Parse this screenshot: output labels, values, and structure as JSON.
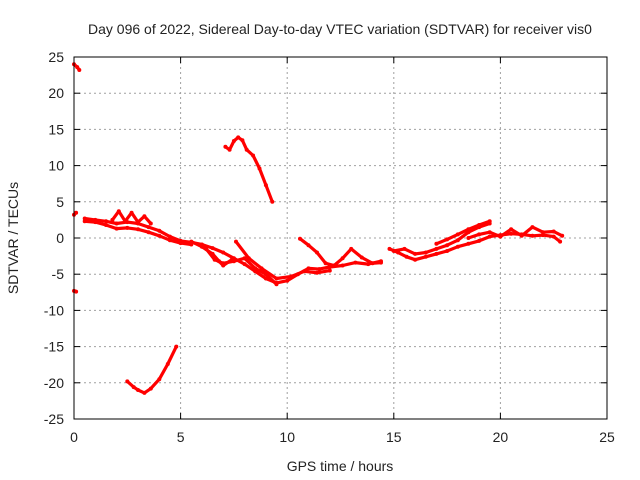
{
  "chart_data": {
    "type": "scatter",
    "title": "Day 096 of 2022, Sidereal Day-to-day VTEC variation (SDTVAR) for receiver vis0",
    "xlabel": "GPS time / hours",
    "ylabel": "SDTVAR / TECUs",
    "xlim": [
      0,
      25
    ],
    "ylim": [
      -25,
      25
    ],
    "xticks": [
      "0",
      "5",
      "10",
      "15",
      "20",
      "25"
    ],
    "yticks": [
      "25",
      "20",
      "15",
      "10",
      "5",
      "0",
      "-5",
      "-10",
      "-15",
      "-20",
      "-25"
    ],
    "xtick_values": [
      0,
      5,
      10,
      15,
      20,
      25
    ],
    "ytick_values": [
      25,
      20,
      15,
      10,
      5,
      0,
      -5,
      -10,
      -15,
      -20,
      -25
    ],
    "grid": true,
    "color": "#ff0000",
    "series": [
      {
        "name": "s1",
        "x": [
          0.0,
          0.15,
          0.25
        ],
        "y": [
          24.0,
          23.6,
          23.2
        ]
      },
      {
        "name": "s2",
        "x": [
          0.0,
          0.1
        ],
        "y": [
          3.2,
          3.5
        ]
      },
      {
        "name": "s3",
        "x": [
          0.0,
          0.1
        ],
        "y": [
          -7.3,
          -7.4
        ]
      },
      {
        "name": "s4",
        "x": [
          0.5,
          1.0,
          1.5,
          2.0,
          2.5,
          3.0,
          3.5,
          4.0,
          4.5,
          5.0,
          5.5,
          6.0,
          6.5,
          7.0,
          7.5,
          8.0,
          8.5,
          9.0,
          9.5,
          10.0,
          10.5,
          11.0,
          11.5,
          12.0
        ],
        "y": [
          2.7,
          2.5,
          2.3,
          2.0,
          2.2,
          2.0,
          1.5,
          1.0,
          0.2,
          -0.4,
          -0.6,
          -0.9,
          -1.4,
          -2.0,
          -2.8,
          -3.6,
          -4.6,
          -5.6,
          -6.2,
          -5.9,
          -5.0,
          -4.2,
          -4.3,
          -4.0
        ]
      },
      {
        "name": "s5",
        "x": [
          0.5,
          1.0,
          1.5,
          2.0,
          2.5,
          3.0,
          3.5,
          4.0,
          4.5,
          5.0,
          5.5
        ],
        "y": [
          2.3,
          2.2,
          1.8,
          1.3,
          1.4,
          1.2,
          0.8,
          0.3,
          -0.3,
          -0.7,
          -0.9
        ]
      },
      {
        "name": "s6",
        "x": [
          1.8,
          2.1,
          2.4,
          2.7,
          3.0,
          3.3,
          3.6
        ],
        "y": [
          2.5,
          3.7,
          2.3,
          3.5,
          2.2,
          3.0,
          2.0
        ]
      },
      {
        "name": "s7",
        "x": [
          5.5,
          6.0,
          6.5,
          6.8,
          7.0,
          7.4
        ],
        "y": [
          -0.5,
          -1.2,
          -2.2,
          -3.2,
          -3.8,
          -3.0
        ]
      },
      {
        "name": "s8",
        "x": [
          6.2,
          6.6,
          7.0,
          7.5,
          8.0,
          8.5,
          9.0,
          9.5
        ],
        "y": [
          -1.5,
          -3.0,
          -3.5,
          -3.2,
          -2.8,
          -4.2,
          -5.0,
          -6.4
        ]
      },
      {
        "name": "s9",
        "x": [
          7.6,
          8.2,
          8.8,
          9.5,
          10.2,
          10.8,
          11.4,
          12.0
        ],
        "y": [
          -0.5,
          -2.8,
          -4.2,
          -5.6,
          -5.3,
          -4.6,
          -4.8,
          -4.5
        ]
      },
      {
        "name": "s10",
        "x": [
          7.1,
          7.3,
          7.5,
          7.7,
          7.9,
          8.1,
          8.4,
          8.7,
          9.0,
          9.3
        ],
        "y": [
          12.6,
          12.2,
          13.4,
          13.9,
          13.5,
          12.2,
          11.4,
          9.6,
          7.3,
          5.0
        ]
      },
      {
        "name": "s11",
        "x": [
          2.5,
          2.8,
          3.0,
          3.3,
          3.6,
          4.0,
          4.4,
          4.8
        ],
        "y": [
          -19.8,
          -20.6,
          -21.0,
          -21.4,
          -20.8,
          -19.5,
          -17.4,
          -15.0
        ]
      },
      {
        "name": "s12",
        "x": [
          10.6,
          11.0,
          11.4,
          11.8,
          12.2,
          12.6,
          13.0,
          13.5,
          14.0,
          14.4
        ],
        "y": [
          -0.1,
          -1.0,
          -2.0,
          -3.5,
          -3.8,
          -2.8,
          -1.5,
          -2.7,
          -3.5,
          -3.4
        ]
      },
      {
        "name": "s13",
        "x": [
          12.0,
          12.6,
          13.2,
          13.8,
          14.4
        ],
        "y": [
          -4.0,
          -3.8,
          -3.4,
          -3.6,
          -3.2
        ]
      },
      {
        "name": "s14",
        "x": [
          14.8,
          15.2,
          15.6,
          16.0,
          16.5,
          17.0,
          17.5,
          18.0,
          18.5,
          19.0,
          19.5,
          20.0,
          20.5,
          21.0,
          21.5,
          22.0,
          22.5,
          22.8
        ],
        "y": [
          -1.5,
          -2.0,
          -2.6,
          -3.0,
          -2.6,
          -2.2,
          -1.8,
          -1.2,
          -0.8,
          -0.4,
          0.2,
          0.4,
          0.6,
          0.5,
          0.3,
          0.4,
          0.2,
          -0.5
        ]
      },
      {
        "name": "s15",
        "x": [
          15.0,
          15.5,
          16.0,
          16.5,
          17.0,
          17.5,
          18.0,
          18.5,
          19.0,
          19.5
        ],
        "y": [
          -1.8,
          -1.5,
          -2.2,
          -2.0,
          -1.5,
          -1.0,
          -0.3,
          0.8,
          1.5,
          2.0
        ]
      },
      {
        "name": "s16",
        "x": [
          18.5,
          19.0,
          19.5,
          20.0,
          20.5,
          21.0,
          21.5,
          22.0,
          22.5,
          22.9
        ],
        "y": [
          0.0,
          0.5,
          0.8,
          0.2,
          1.2,
          0.3,
          1.5,
          0.8,
          0.9,
          0.3
        ]
      },
      {
        "name": "s17",
        "x": [
          17.0,
          17.5,
          18.0,
          18.5,
          19.0,
          19.5
        ],
        "y": [
          -0.8,
          -0.2,
          0.5,
          1.2,
          1.8,
          2.3
        ]
      }
    ]
  }
}
